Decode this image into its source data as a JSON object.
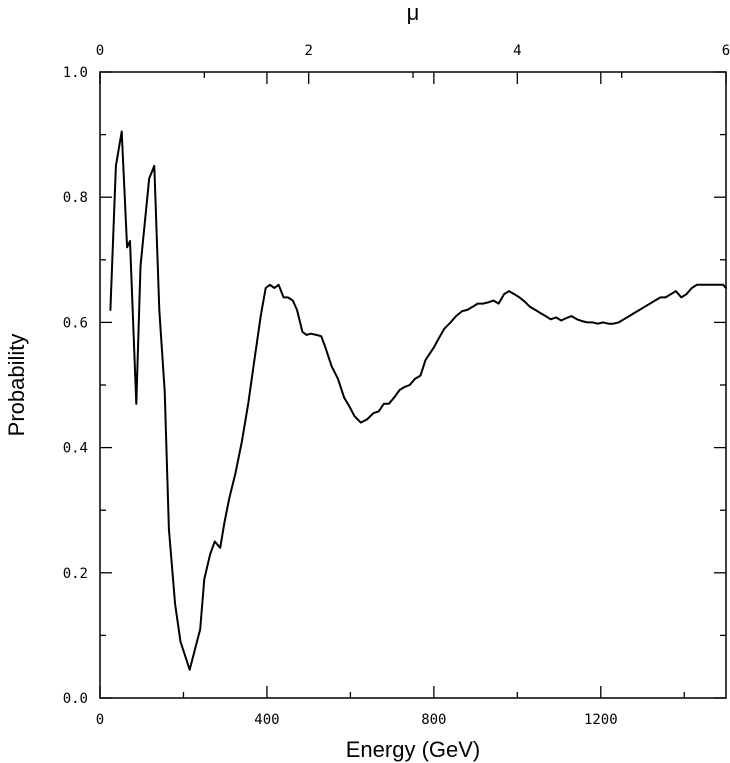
{
  "chart_data": {
    "type": "line",
    "xlabel": "Energy (GeV)",
    "ylabel": "Probability",
    "top_axis_label": "μ",
    "xlim": [
      0,
      1500
    ],
    "ylim": [
      0.0,
      1.0
    ],
    "top_axis_lim": [
      0,
      6
    ],
    "x_ticks": [
      0,
      400,
      800,
      1200
    ],
    "x_tick_labels": [
      "0",
      "400",
      "800",
      "1200"
    ],
    "x_minor_ticks": [
      200,
      600,
      1000,
      1400
    ],
    "top_ticks": [
      0,
      2,
      4,
      6
    ],
    "top_tick_labels": [
      "0",
      "2",
      "4",
      "6"
    ],
    "top_minor_ticks": [
      1,
      3,
      5
    ],
    "y_ticks": [
      0.0,
      0.2,
      0.4,
      0.6,
      0.8,
      1.0
    ],
    "y_tick_labels": [
      "0.0",
      "0.2",
      "0.4",
      "0.6",
      "0.8",
      "1.0"
    ],
    "y_minor_ticks": [
      0.1,
      0.3,
      0.5,
      0.7,
      0.9
    ],
    "grid": false,
    "series": [
      {
        "x": [
          25,
          38,
          52,
          65,
          72,
          87,
          97,
          118,
          130,
          142,
          155,
          165,
          180,
          193,
          215,
          240,
          250,
          264,
          275,
          288,
          298,
          310,
          325,
          340,
          355,
          370,
          385,
          397,
          407,
          418,
          428,
          440,
          450,
          462,
          472,
          485,
          495,
          505,
          518,
          530,
          540,
          555,
          570,
          585,
          598,
          610,
          625,
          640,
          655,
          668,
          680,
          692,
          705,
          718,
          730,
          742,
          755,
          768,
          780,
          790,
          800,
          812,
          825,
          840,
          853,
          868,
          880,
          893,
          905,
          918,
          930,
          943,
          955,
          968,
          980,
          993,
          1005,
          1018,
          1030,
          1043,
          1055,
          1068,
          1080,
          1093,
          1105,
          1118,
          1130,
          1143,
          1155,
          1168,
          1180,
          1193,
          1205,
          1218,
          1230,
          1243,
          1255,
          1268,
          1280,
          1293,
          1305,
          1318,
          1330,
          1343,
          1355,
          1368,
          1380,
          1393,
          1405,
          1418,
          1430,
          1443,
          1455,
          1468,
          1480,
          1493,
          1500
        ],
        "values": [
          0.62,
          0.85,
          0.905,
          0.72,
          0.73,
          0.47,
          0.69,
          0.83,
          0.85,
          0.62,
          0.49,
          0.27,
          0.15,
          0.09,
          0.045,
          0.11,
          0.19,
          0.23,
          0.25,
          0.24,
          0.28,
          0.32,
          0.36,
          0.41,
          0.47,
          0.54,
          0.61,
          0.655,
          0.66,
          0.655,
          0.66,
          0.64,
          0.64,
          0.635,
          0.62,
          0.585,
          0.58,
          0.582,
          0.58,
          0.578,
          0.56,
          0.53,
          0.51,
          0.48,
          0.465,
          0.45,
          0.44,
          0.445,
          0.455,
          0.458,
          0.47,
          0.47,
          0.48,
          0.492,
          0.497,
          0.5,
          0.51,
          0.515,
          0.54,
          0.55,
          0.56,
          0.575,
          0.59,
          0.6,
          0.61,
          0.618,
          0.62,
          0.625,
          0.63,
          0.63,
          0.632,
          0.635,
          0.63,
          0.645,
          0.65,
          0.645,
          0.64,
          0.633,
          0.625,
          0.62,
          0.615,
          0.61,
          0.605,
          0.608,
          0.603,
          0.607,
          0.61,
          0.605,
          0.602,
          0.6,
          0.6,
          0.598,
          0.6,
          0.598,
          0.598,
          0.6,
          0.605,
          0.61,
          0.615,
          0.62,
          0.625,
          0.63,
          0.635,
          0.64,
          0.64,
          0.645,
          0.65,
          0.64,
          0.645,
          0.655,
          0.66,
          0.66,
          0.66,
          0.66,
          0.66,
          0.66,
          0.655
        ]
      }
    ],
    "colors": {
      "line": "#000000",
      "axes": "#000000",
      "background": "#ffffff"
    }
  }
}
